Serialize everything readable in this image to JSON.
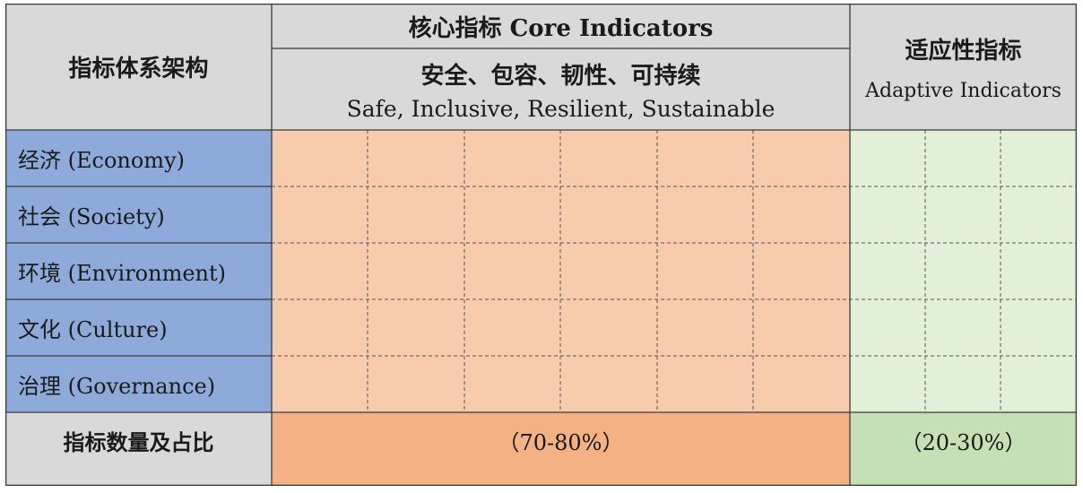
{
  "header": {
    "architecture_label": "指标体系架构",
    "core_title": "核心指标 Core Indicators",
    "core_subtitle_cn": "安全、包容、韧性、可持续",
    "core_subtitle_en": "Safe, Inclusive, Resilient, Sustainable",
    "adaptive_title_cn": "适应性指标",
    "adaptive_title_en": "Adaptive Indicators"
  },
  "rows": [
    {
      "label": "经济 (Economy)"
    },
    {
      "label": "社会 (Society)"
    },
    {
      "label": "环境 (Environment)"
    },
    {
      "label": "文化 (Culture)"
    },
    {
      "label": "治理 (Governance)"
    }
  ],
  "summary": {
    "label": "指标数量及占比",
    "core_share": "（70-80%）",
    "adaptive_share": "（20-30%）"
  },
  "grid": {
    "core_columns": 6,
    "adaptive_columns": 3
  },
  "colors": {
    "header_bg": "#d9d9d9",
    "row_label_bg": "#8eaadb",
    "core_bg": "#f8cbad",
    "core_total_bg": "#f4b183",
    "adaptive_bg": "#e2efd9",
    "adaptive_total_bg": "#c5e0b4"
  }
}
